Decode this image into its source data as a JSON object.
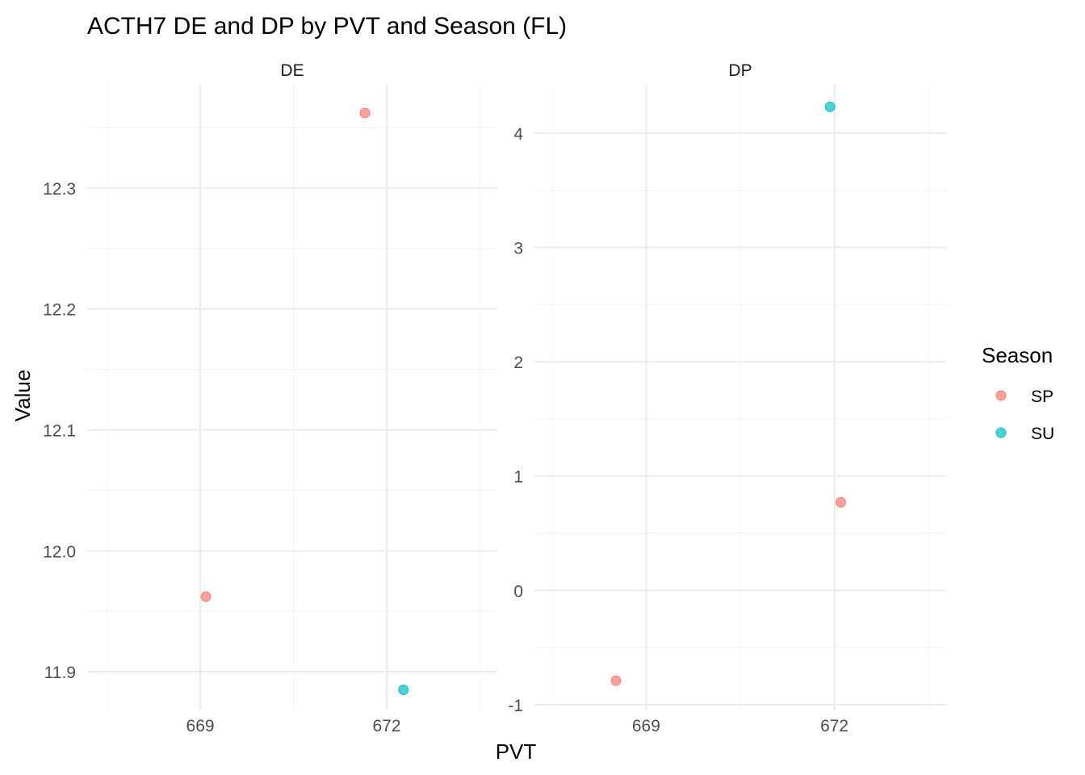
{
  "chart_data": {
    "type": "scatter",
    "title": "ACTH7 DE and DP by PVT and Season (FL)",
    "xlabel": "PVT",
    "ylabel": "Value",
    "legend": {
      "title": "Season",
      "placement": "right",
      "entries": [
        {
          "name": "SP",
          "color": "#F8766D"
        },
        {
          "name": "SU",
          "color": "#00BFC4"
        }
      ]
    },
    "grid": true,
    "panels": [
      {
        "name": "DE",
        "xlim": [
          667.18,
          673.78
        ],
        "ylim": [
          11.868,
          12.386
        ],
        "x_ticks": [
          669,
          672
        ],
        "x_tick_labels": [
          "669",
          "672"
        ],
        "y_ticks": [
          11.9,
          12.0,
          12.1,
          12.2,
          12.3
        ],
        "y_tick_labels": [
          "11.9",
          "12.0",
          "12.1",
          "12.2",
          "12.3"
        ],
        "points": [
          {
            "x": 671.65,
            "y": 12.362,
            "season": "SP"
          },
          {
            "x": 669.09,
            "y": 11.962,
            "season": "SP"
          },
          {
            "x": 672.27,
            "y": 11.885,
            "season": "SU"
          }
        ]
      },
      {
        "name": "DP",
        "xlim": [
          667.22,
          673.78
        ],
        "ylim": [
          -1.05,
          4.43
        ],
        "x_ticks": [
          669,
          672
        ],
        "x_tick_labels": [
          "669",
          "672"
        ],
        "y_ticks": [
          -1,
          0,
          1,
          2,
          3,
          4
        ],
        "y_tick_labels": [
          "-1",
          "0",
          "1",
          "2",
          "3",
          "4"
        ],
        "points": [
          {
            "x": 671.93,
            "y": 4.23,
            "season": "SU"
          },
          {
            "x": 672.1,
            "y": 0.77,
            "season": "SP"
          },
          {
            "x": 668.52,
            "y": -0.79,
            "season": "SP"
          }
        ]
      }
    ]
  }
}
